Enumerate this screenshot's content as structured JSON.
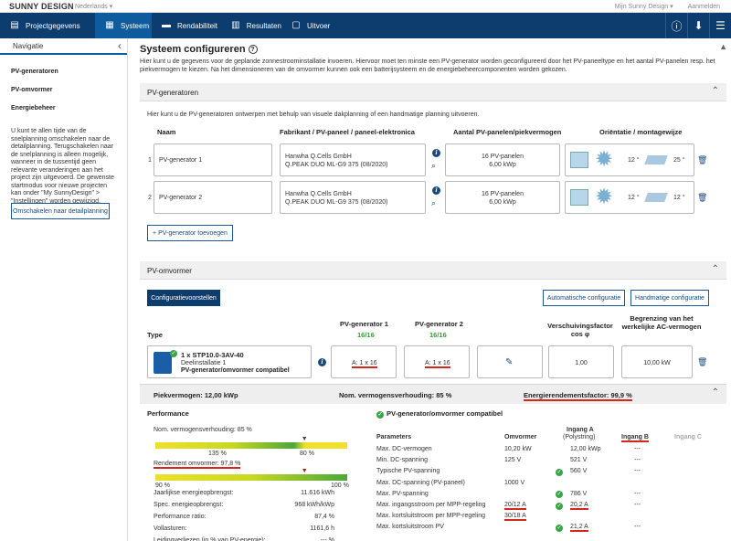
{
  "app": {
    "brand": "SUNNY DESIGN",
    "language": "Nederlands",
    "user": "Mijn Sunny Design",
    "login": "Aanmelden"
  },
  "nav": {
    "tabs": [
      {
        "label": "Projectgegevens",
        "icon": "project-icon"
      },
      {
        "label": "Systeem",
        "icon": "system-icon"
      },
      {
        "label": "Rendabiliteit",
        "icon": "profitability-icon"
      },
      {
        "label": "Resultaten",
        "icon": "results-icon"
      },
      {
        "label": "Uitvoer",
        "icon": "output-icon"
      }
    ],
    "active": "Systeem"
  },
  "sidebar": {
    "title": "Navigatie",
    "items": [
      "PV-generatoren",
      "PV-omvormer",
      "Energiebeheer"
    ],
    "description": "U kunt te allen tijde van de snelplanning omschakelen naar de detailplanning. Terugschakelen naar de snelplanning is alleen mogelijk, wanneer in de tussentijd geen relevante veranderingen aan het project zijn uitgevoerd. De gewenste startmodus voor nieuwe projecten kan onder \"My SunnyDesign\" > \"Instellingen\" worden gewijzigd.",
    "switch_button": "Omschakelen naar detailplanning"
  },
  "main": {
    "title": "Systeem configureren",
    "intro": "Hier kunt u de gegevens voor de geplande zonnestroominstallatie invoeren. Hiervoor moet ten minste een PV-generator worden geconfigureerd door het PV-paneeltype en het aantal PV-panelen resp. het piekvermogen te kiezen. Na het dimensioneren van de omvormer kunnen ook een batterijsysteem en de energiebeheercomponenten worden gekozen."
  },
  "pvgen": {
    "title": "PV-generatoren",
    "hint": "Hier kunt u de PV-generatoren ontwerpen met behulp van visuele dakplanning of een handmatige planning uitvoeren.",
    "headers": {
      "name": "Naam",
      "manufacturer": "Fabrikant / PV-paneel / paneel-elektronica",
      "count": "Aantal PV-panelen/piekvermogen",
      "orientation": "Oriëntatie / montagewijze"
    },
    "rows": [
      {
        "index": "1",
        "name": "PV-generator 1",
        "maker": "Hanwha Q.Cells GmbH",
        "model": "Q.PEAK DUO ML-G9 375 (08/2020)",
        "panels": "16 PV-panelen",
        "power": "6,00 kWp",
        "tilt": "12 °",
        "azimuth": "25 °"
      },
      {
        "index": "2",
        "name": "PV-generator 2",
        "maker": "Hanwha Q.Cells GmbH",
        "model": "Q.PEAK DUO ML-G9 375 (08/2020)",
        "panels": "16 PV-panelen",
        "power": "6,00 kWp",
        "tilt": "12 °",
        "azimuth": "12 °"
      }
    ],
    "add_button": "+ PV-generator toevoegen"
  },
  "inverter": {
    "title": "PV-omvormer",
    "config_button": "Configuratievoorstellen",
    "auto_button": "Automatische configuratie",
    "manual_button": "Handmatige configuratie",
    "headers": {
      "type": "Type",
      "gen1": "PV-generator 1",
      "gen1_ratio": "16/16",
      "gen2": "PV-generator 2",
      "gen2_ratio": "16/16",
      "cosphi": "Verschuivingsfactor cos φ",
      "limit": "Begrenzing van het werkelijke AC-vermogen"
    },
    "row": {
      "model": "1 x STP10.0-3AV-40",
      "install": "Deelinstallatie 1",
      "status": "PV-generator/omvormer compatibel",
      "gen1": "A: 1 x 16",
      "gen2": "A: 1 x 16",
      "cosphi": "1,00",
      "limit": "10,00 kW"
    },
    "summary": {
      "peak": "Piekvermogen: 12,00 kWp",
      "ratio": "Nom. vermogensverhouding: 85 %",
      "efficiency": "Energierendementsfactor: 99,9 %"
    },
    "performance": {
      "title": "Performance",
      "ratio_label": "Nom. vermogensverhouding: 85 %",
      "ratio_value": 85,
      "ratio_ticks": [
        "135 %",
        "80 %"
      ],
      "eff_label": "Rendement omvormer: 97,8 %",
      "eff_value": 97.8,
      "eff_ticks": [
        "90 %",
        "100 %"
      ],
      "rows": [
        {
          "label": "Jaarlijkse energieopbrengst:",
          "value": "11.616 kWh"
        },
        {
          "label": "Spec. energieopbrengst:",
          "value": "968 kWh/kWp"
        },
        {
          "label": "Performance ratio:",
          "value": "87,4 %"
        },
        {
          "label": "Vollasturen:",
          "value": "1161,6 h"
        },
        {
          "label": "Leidingverliezen (in % van PV-energie):",
          "value": "--- %"
        }
      ]
    },
    "compat": {
      "title": "PV-generator/omvormer compatibel",
      "headers": {
        "param": "Parameters",
        "inv": "Omvormer",
        "inA": "Ingang A",
        "inA_sub": "(Polystring)",
        "inB": "Ingang B",
        "inC": "Ingang C"
      },
      "rows": [
        {
          "param": "Max. DC-vermogen",
          "inv": "10,20 kW",
          "check": false,
          "a": "12,00 kWp",
          "b": "---"
        },
        {
          "param": "Min. DC-spanning",
          "inv": "125 V",
          "check": false,
          "a": "521 V",
          "b": "---"
        },
        {
          "param": "Typische PV-spanning",
          "inv": "",
          "check": true,
          "a": "560 V",
          "b": "---"
        },
        {
          "param": "Max. DC-spanning (PV-paneel)",
          "inv": "1000 V",
          "check": false,
          "a": "",
          "b": ""
        },
        {
          "param": "Max. PV-spanning",
          "inv": "",
          "check": true,
          "a": "786 V",
          "b": "---"
        },
        {
          "param": "Max. ingangsstroom per MPP-regeling",
          "inv": "20/12 A",
          "check": true,
          "a": "20,2 A",
          "b": "---"
        },
        {
          "param": "Max. kortsluitstroom per MPP-regeling",
          "inv": "30/18 A",
          "check": false,
          "a": "",
          "b": ""
        },
        {
          "param": "Max. kortsluitstroom PV",
          "inv": "",
          "check": true,
          "a": "21,2 A",
          "b": "---"
        }
      ]
    }
  }
}
